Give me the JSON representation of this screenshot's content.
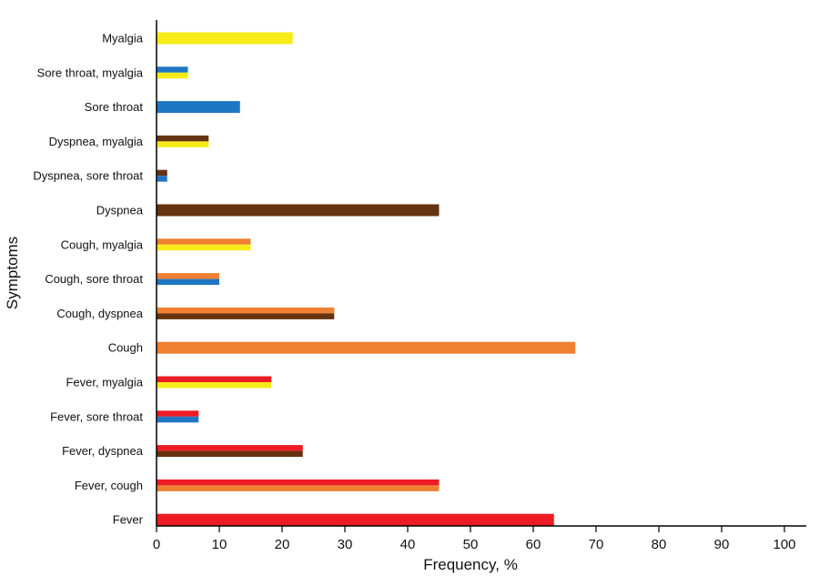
{
  "chart_data": {
    "type": "bar",
    "orientation": "horizontal",
    "xlabel": "Frequency, %",
    "ylabel": "Symptoms",
    "xlim": [
      0,
      100
    ],
    "xticks": [
      0,
      10,
      20,
      30,
      40,
      50,
      60,
      70,
      80,
      90,
      100
    ],
    "grid": false,
    "legend": "none",
    "colors": {
      "fever": "#ed1c24",
      "cough": "#f08132",
      "dyspnea": "#663311",
      "sore_throat": "#1f77c4",
      "myalgia": "#f7eb1a"
    },
    "categories": [
      {
        "label": "Fever",
        "value": 63.3,
        "colors": [
          "fever"
        ]
      },
      {
        "label": "Fever, cough",
        "value": 45,
        "colors": [
          "fever",
          "cough"
        ]
      },
      {
        "label": "Fever, dyspnea",
        "value": 23.3,
        "colors": [
          "fever",
          "dyspnea"
        ]
      },
      {
        "label": "Fever, sore throat",
        "value": 6.7,
        "colors": [
          "fever",
          "sore_throat"
        ]
      },
      {
        "label": "Fever, myalgia",
        "value": 18.3,
        "colors": [
          "fever",
          "myalgia"
        ]
      },
      {
        "label": "Cough",
        "value": 66.7,
        "colors": [
          "cough"
        ]
      },
      {
        "label": "Cough, dyspnea",
        "value": 28.3,
        "colors": [
          "cough",
          "dyspnea"
        ]
      },
      {
        "label": "Cough, sore throat",
        "value": 10,
        "colors": [
          "cough",
          "sore_throat"
        ]
      },
      {
        "label": "Cough, myalgia",
        "value": 15,
        "colors": [
          "cough",
          "myalgia"
        ]
      },
      {
        "label": "Dyspnea",
        "value": 45,
        "colors": [
          "dyspnea"
        ]
      },
      {
        "label": "Dyspnea, sore throat",
        "value": 1.7,
        "colors": [
          "dyspnea",
          "sore_throat"
        ]
      },
      {
        "label": "Dyspnea, myalgia",
        "value": 8.3,
        "colors": [
          "dyspnea",
          "myalgia"
        ]
      },
      {
        "label": "Sore throat",
        "value": 13.3,
        "colors": [
          "sore_throat"
        ]
      },
      {
        "label": "Sore throat, myalgia",
        "value": 5,
        "colors": [
          "sore_throat",
          "myalgia"
        ]
      },
      {
        "label": "Myalgia",
        "value": 21.7,
        "colors": [
          "myalgia"
        ]
      }
    ]
  }
}
